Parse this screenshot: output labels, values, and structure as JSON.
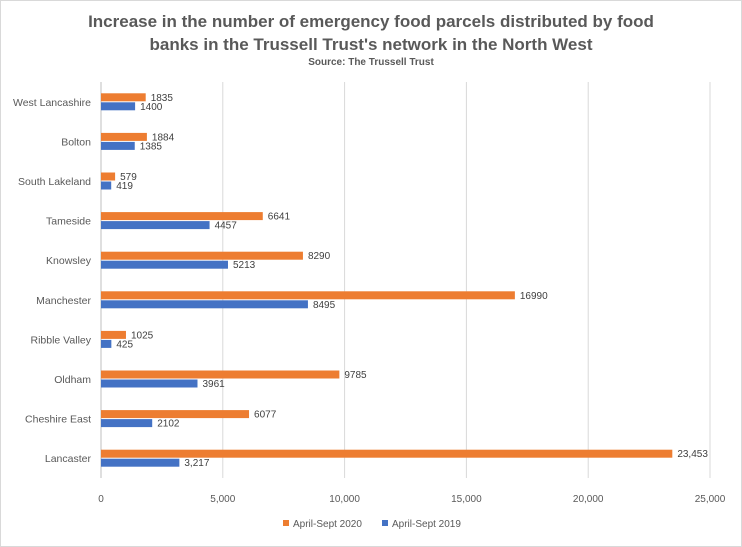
{
  "chart_data": {
    "type": "bar",
    "orientation": "horizontal",
    "title_line1": "Increase in the number of emergency food parcels distributed by food",
    "title_line2": "banks in the Trussell Trust's network in the North West",
    "subtitle": "Source: The Trussell Trust",
    "categories": [
      "West Lancashire",
      "Bolton",
      "South Lakeland",
      "Tameside",
      "Knowsley",
      "Manchester",
      "Ribble Valley",
      "Oldham",
      "Cheshire East",
      "Lancaster"
    ],
    "series": [
      {
        "name": "April-Sept 2020",
        "color": "#ed7d31",
        "values": [
          1835,
          1884,
          579,
          6641,
          8290,
          16990,
          1025,
          9785,
          6077,
          23453
        ],
        "labels": [
          "1835",
          "1884",
          "579",
          "6641",
          "8290",
          "16990",
          "1025",
          "9785",
          "6077",
          "23,453"
        ]
      },
      {
        "name": "April-Sept 2019",
        "color": "#4472c4",
        "values": [
          1400,
          1385,
          419,
          4457,
          5213,
          8495,
          425,
          3961,
          2102,
          3217
        ],
        "labels": [
          "1400",
          "1385",
          "419",
          "4457",
          "5213",
          "8495",
          "425",
          "3961",
          "2102",
          "3,217"
        ]
      }
    ],
    "xlim": [
      0,
      25000
    ],
    "xticks": [
      0,
      5000,
      10000,
      15000,
      20000,
      25000
    ],
    "xtick_labels": [
      "0",
      "5,000",
      "10,000",
      "15,000",
      "20,000",
      "25,000"
    ],
    "grid": "vertical",
    "legend_position": "bottom"
  }
}
